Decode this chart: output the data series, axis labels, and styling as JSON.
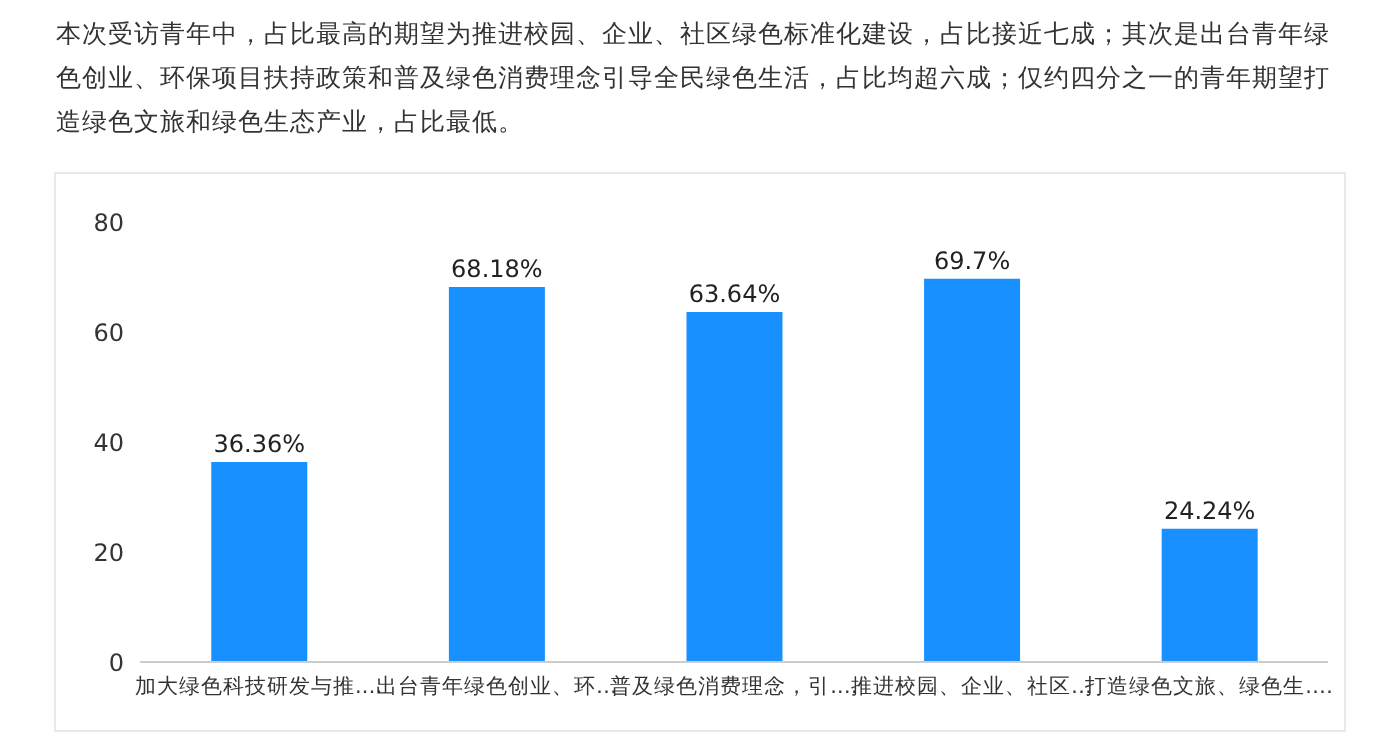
{
  "chart_data": {
    "type": "bar",
    "title": "本次受访青年中，占比最高的期望为推进校园、企业、社区绿色标准化建设，占比接近七成；其次是出台青年绿色创业、环保项目扶持政策和普及绿色消费理念引导全民绿色生活，占比均超六成；仅约四分之一的青年期望打造绿色文旅和绿色生态产业，占比最低。",
    "categories": [
      "加大绿色科技研发与推.…",
      "出台青年绿色创业、环…",
      "普及绿色消费理念，引.…",
      "推进校园、企业、社区…",
      "打造绿色文旅、绿色生.…"
    ],
    "values": [
      36.36,
      68.18,
      63.64,
      69.7,
      24.24
    ],
    "value_labels": [
      "36.36%",
      "68.18%",
      "63.64%",
      "69.7%",
      "24.24%"
    ],
    "color": "#1890ff",
    "ylim": [
      0,
      80
    ],
    "yticks": [
      0,
      20,
      40,
      60,
      80
    ],
    "grid": false
  }
}
